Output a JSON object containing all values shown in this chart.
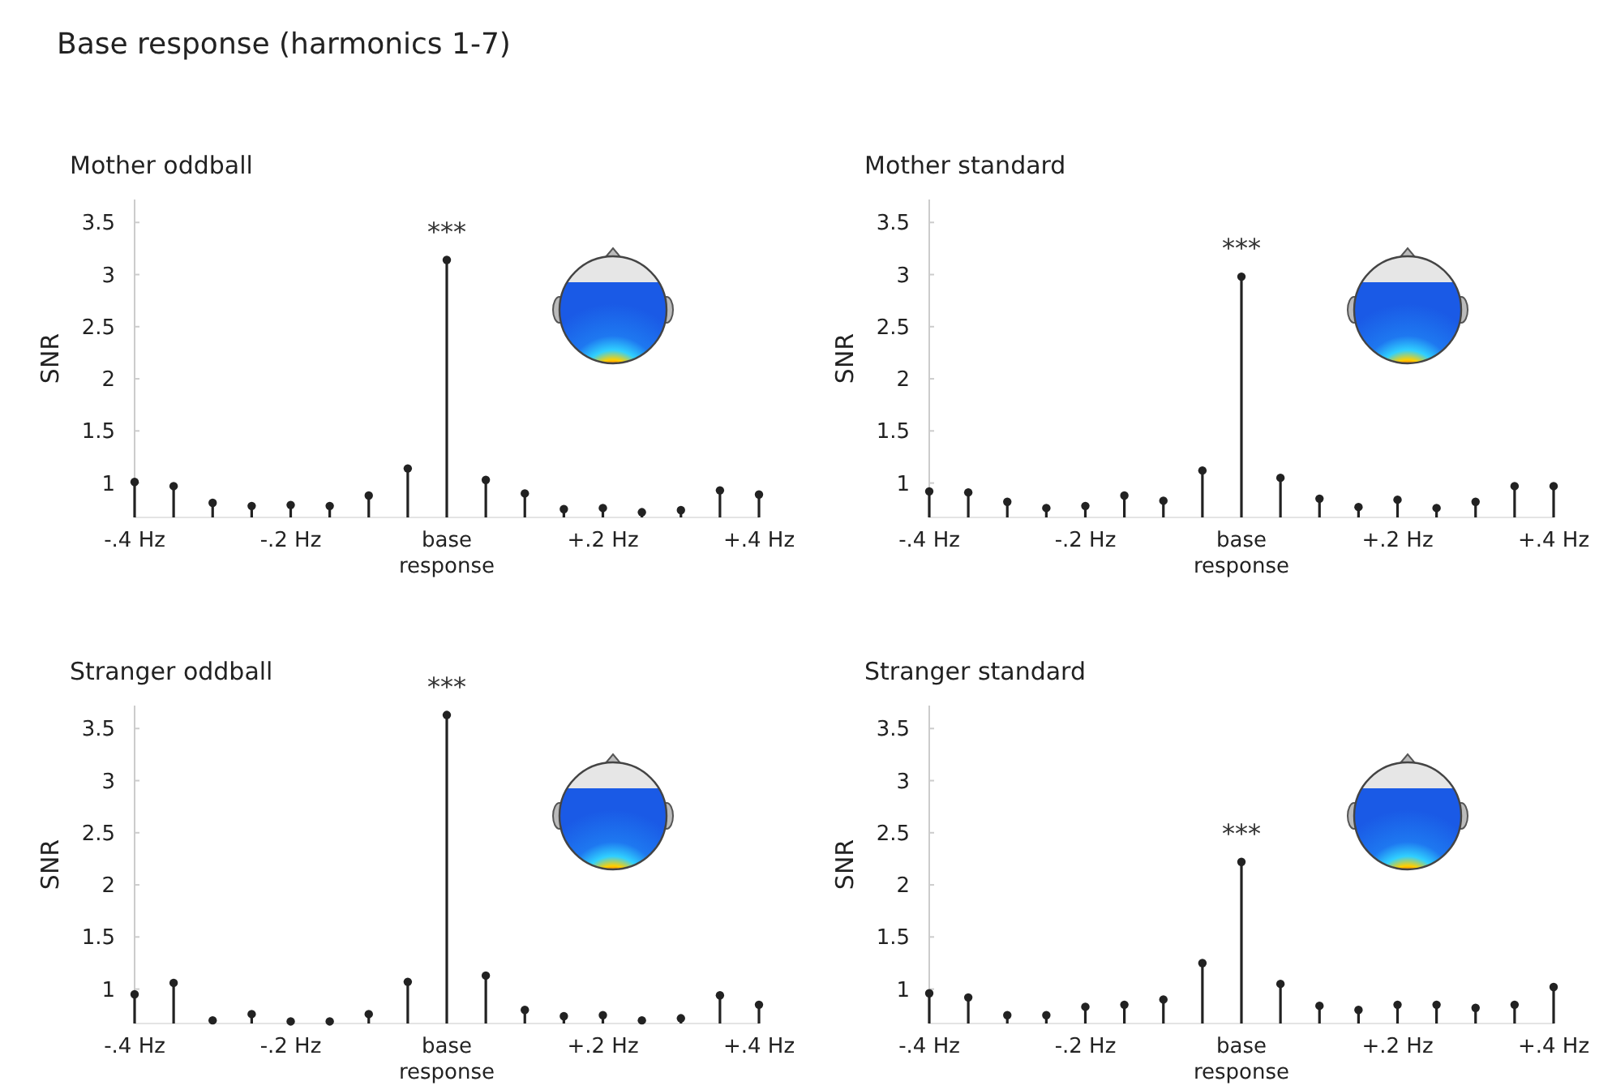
{
  "chart_data": [
    {
      "type": "lollipop",
      "title": "Mother oddball",
      "ylabel": "SNR",
      "categories": [
        "-.4 Hz",
        null,
        null,
        null,
        "-.2 Hz",
        null,
        null,
        null,
        "base response",
        null,
        null,
        null,
        "+.2 Hz",
        null,
        null,
        null,
        "+.4 Hz"
      ],
      "series": [
        {
          "color": "#222222",
          "values": [
            1.01,
            0.97,
            0.81,
            0.78,
            0.79,
            0.78,
            0.88,
            1.14,
            3.14,
            1.03,
            0.9,
            0.75,
            0.76,
            0.72,
            0.74,
            0.93,
            0.89
          ]
        }
      ],
      "ylim": [
        0.67,
        3.72
      ],
      "yticks": [
        1,
        1.5,
        2,
        2.5,
        3,
        3.5
      ],
      "marker": "circle",
      "annotations": [
        "Base response (harmonics 1-7)",
        "***"
      ]
    },
    {
      "type": "lollipop",
      "title": "Mother standard",
      "ylabel": "SNR",
      "categories": [
        "-.4 Hz",
        null,
        null,
        null,
        "-.2 Hz",
        null,
        null,
        null,
        "base response",
        null,
        null,
        null,
        "+.2 Hz",
        null,
        null,
        null,
        "+.4 Hz"
      ],
      "series": [
        {
          "color": "#222222",
          "values": [
            0.92,
            0.91,
            0.82,
            0.76,
            0.78,
            0.88,
            0.83,
            1.12,
            2.98,
            1.05,
            0.85,
            0.77,
            0.84,
            0.76,
            0.82,
            0.97,
            0.97
          ]
        }
      ],
      "ylim": [
        0.67,
        3.72
      ],
      "yticks": [
        1,
        1.5,
        2,
        2.5,
        3,
        3.5
      ],
      "marker": "circle",
      "annotations": [
        "***"
      ]
    },
    {
      "type": "lollipop",
      "title": "Stranger oddball",
      "ylabel": "SNR",
      "categories": [
        "-.4 Hz",
        null,
        null,
        null,
        "-.2 Hz",
        null,
        null,
        null,
        "base response",
        null,
        null,
        null,
        "+.2 Hz",
        null,
        null,
        null,
        "+.4 Hz"
      ],
      "series": [
        {
          "color": "#222222",
          "values": [
            0.95,
            1.06,
            0.7,
            0.76,
            0.69,
            0.69,
            0.76,
            1.07,
            3.63,
            1.13,
            0.8,
            0.74,
            0.75,
            0.7,
            0.72,
            0.94,
            0.85
          ]
        }
      ],
      "ylim": [
        0.67,
        3.72
      ],
      "yticks": [
        1,
        1.5,
        2,
        2.5,
        3,
        3.5
      ],
      "marker": "circle",
      "annotations": [
        "***"
      ]
    },
    {
      "type": "lollipop",
      "title": "Stranger standard",
      "ylabel": "SNR",
      "categories": [
        "-.4 Hz",
        null,
        null,
        null,
        "-.2 Hz",
        null,
        null,
        null,
        "base response",
        null,
        null,
        null,
        "+.2 Hz",
        null,
        null,
        null,
        "+.4 Hz"
      ],
      "series": [
        {
          "color": "#222222",
          "values": [
            0.96,
            0.92,
            0.75,
            0.75,
            0.83,
            0.85,
            0.9,
            1.25,
            2.22,
            1.05,
            0.84,
            0.8,
            0.85,
            0.85,
            0.82,
            0.85,
            1.02
          ]
        }
      ],
      "ylim": [
        0.67,
        3.72
      ],
      "yticks": [
        1,
        1.5,
        2,
        2.5,
        3,
        3.5
      ],
      "marker": "circle",
      "annotations": [
        "***"
      ]
    }
  ]
}
